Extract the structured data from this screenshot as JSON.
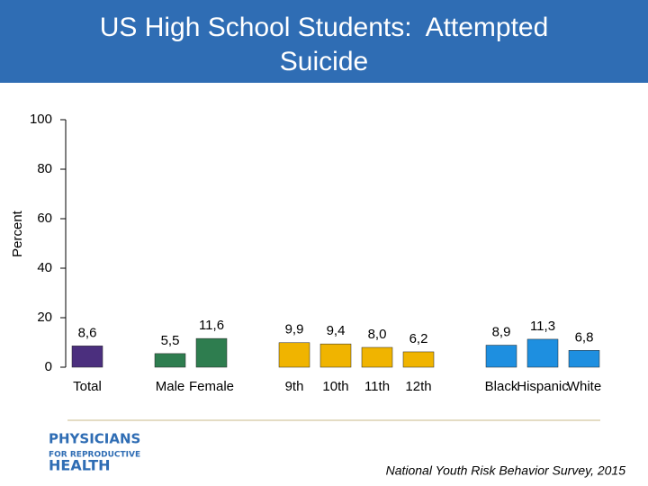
{
  "chart_data": {
    "type": "bar",
    "title": "US High School Students:  Attempted Suicide",
    "y_label": "Percent",
    "categories": [
      "Total",
      null,
      "Male",
      "Female",
      null,
      "9th",
      "10th",
      "11th",
      "12th",
      null,
      "Black",
      "Hispanic",
      "White"
    ],
    "values": [
      8.6,
      null,
      5.5,
      11.6,
      null,
      9.9,
      9.4,
      8.0,
      6.2,
      null,
      8.9,
      11.3,
      6.8
    ],
    "value_labels": [
      "8,6",
      null,
      "5,5",
      "11,6",
      null,
      "9,9",
      "9,4",
      "8,0",
      "6,2",
      null,
      "8,9",
      "11,3",
      "6,8"
    ],
    "colors": [
      "#4b2f7e",
      null,
      "#2e7d4f",
      "#2e7d4f",
      null,
      "#f0b400",
      "#f0b400",
      "#f0b400",
      "#f0b400",
      null,
      "#1e8fe0",
      "#1e8fe0",
      "#1e8fe0"
    ],
    "ylim": [
      0,
      100
    ],
    "yticks": [
      0,
      20,
      40,
      60,
      80,
      100
    ],
    "grid": false,
    "source": "National Youth Risk Behavior Survey, 2015"
  },
  "logo": {
    "line1": "PHYSICIANS",
    "line2": "FOR REPRODUCTIVE",
    "line3": "HEALTH"
  }
}
